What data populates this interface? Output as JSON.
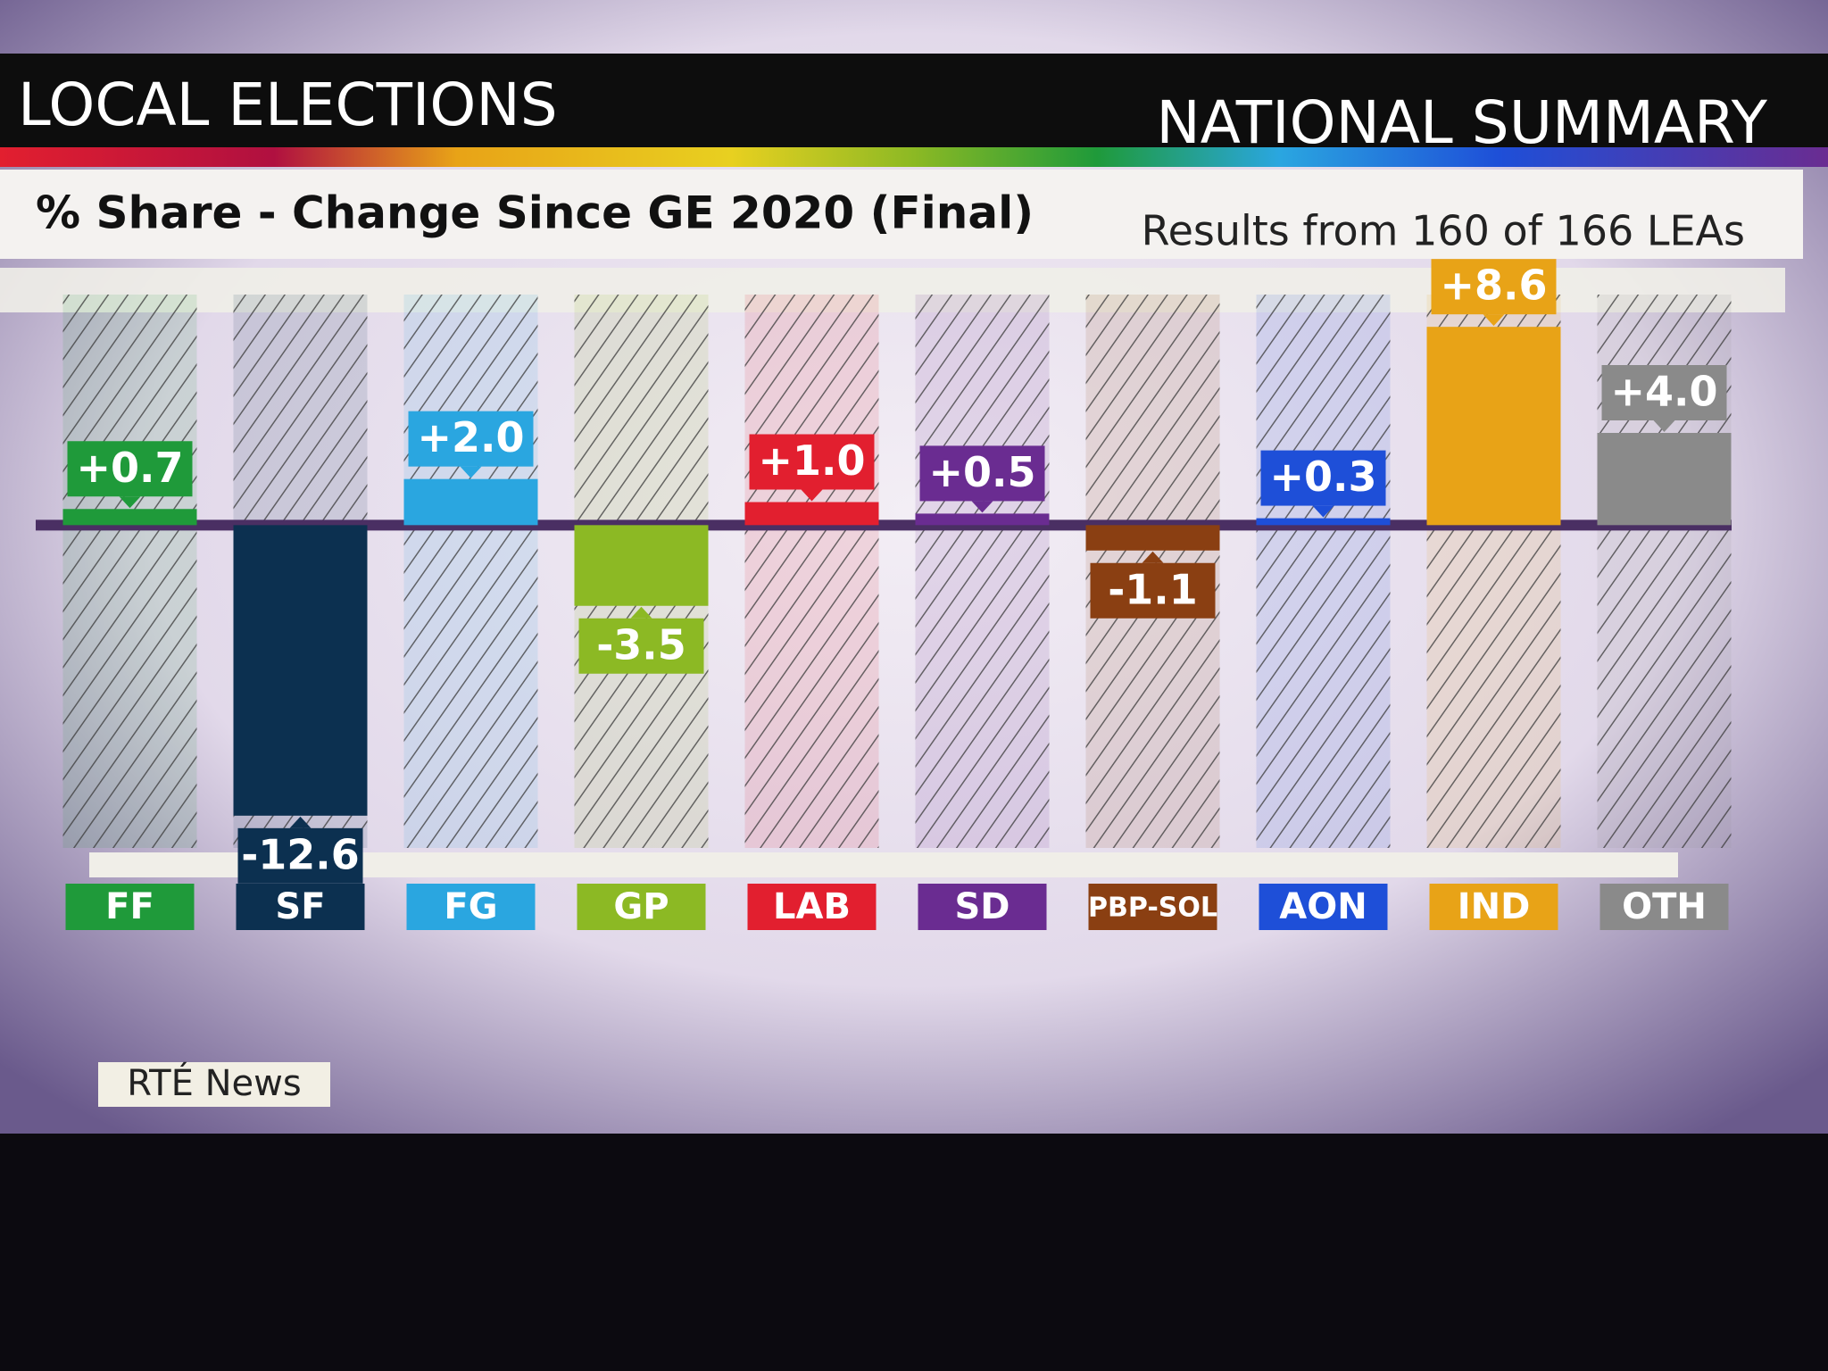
{
  "chart_data": {
    "type": "bar",
    "header_left": "LOCAL ELECTIONS",
    "header_right": "NATIONAL SUMMARY",
    "title": "% Share - Change Since GE 2020 (Final)",
    "subtitle": "Results from 160 of 166 LEAs",
    "source": "RTÉ News",
    "categories": [
      "FF",
      "SF",
      "FG",
      "GP",
      "LAB",
      "SD",
      "PBP-SOL",
      "AON",
      "IND",
      "OTH"
    ],
    "values": [
      0.7,
      -12.6,
      2.0,
      -3.5,
      1.0,
      0.5,
      -1.1,
      0.3,
      8.6,
      4.0
    ],
    "value_labels": [
      "+0.7",
      "-12.6",
      "+2.0",
      "-3.5",
      "+1.0",
      "+0.5",
      "-1.1",
      "+0.3",
      "+8.6",
      "+4.0"
    ],
    "colors": [
      "#1f9a3a",
      "#0c3050",
      "#2aa6e0",
      "#8cb924",
      "#e21f2f",
      "#6a2c91",
      "#8a3f12",
      "#1e4fd8",
      "#e8a317",
      "#8a8a8a"
    ],
    "ylim": [
      -14,
      10
    ]
  }
}
